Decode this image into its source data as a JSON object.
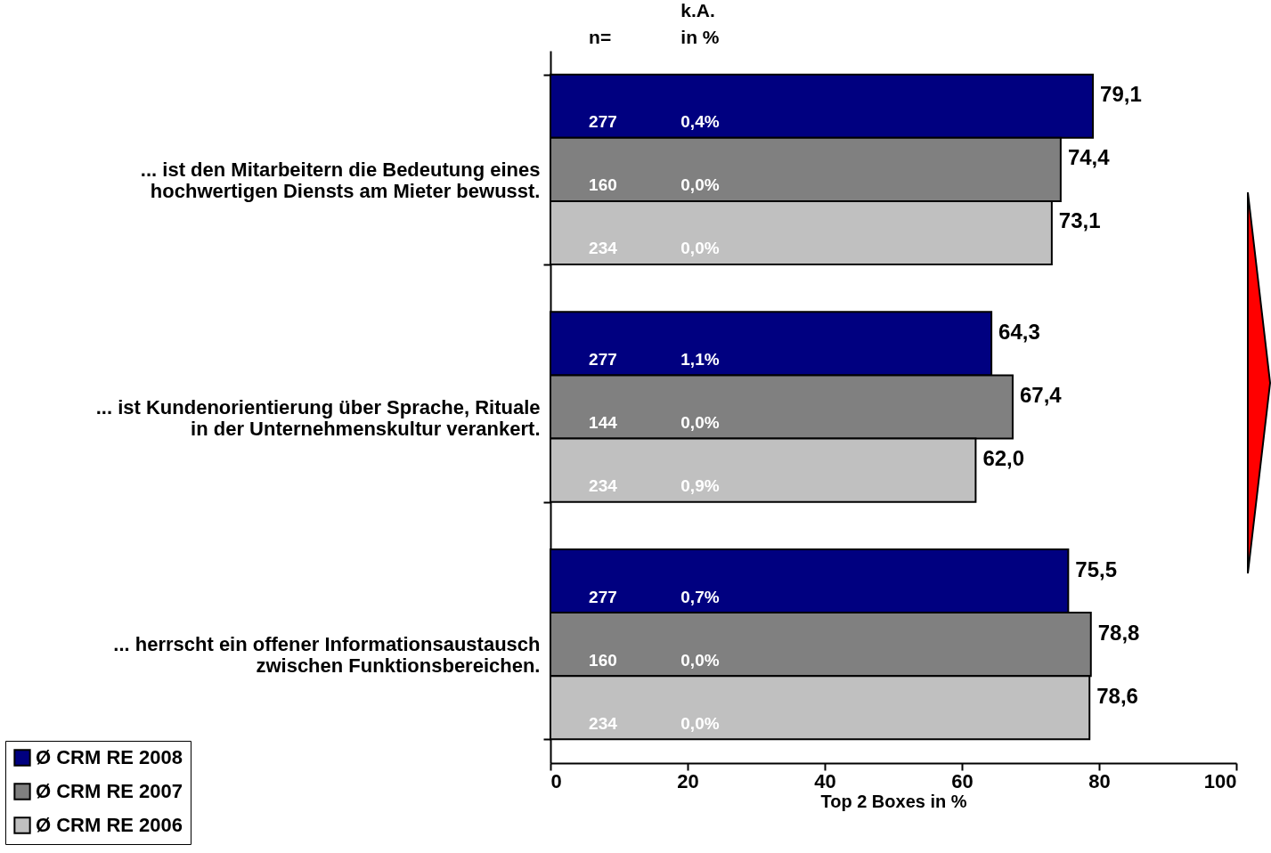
{
  "chart_data": {
    "type": "bar",
    "orientation": "horizontal",
    "xlabel": "Top 2 Boxes in %",
    "xlim": [
      0,
      100
    ],
    "xticks": [
      0,
      20,
      40,
      60,
      80,
      100
    ],
    "grid": false,
    "legend": "bottom left",
    "categories": [
      "... ist den Mitarbeitern die Bedeutung eines hochwertigen Diensts am Mieter bewusst.",
      "... ist Kundenorientierung über Sprache, Rituale in der Unternehmenskultur verankert.",
      "... herrscht ein offener Informationsaustausch zwischen Funktionsbereichen."
    ],
    "series": [
      {
        "name": "Ø CRM RE 2008",
        "color": "#000080",
        "values": [
          79.1,
          64.3,
          75.5
        ],
        "value_labels": [
          "79,1",
          "64,3",
          "75,5"
        ]
      },
      {
        "name": "Ø CRM RE 2007",
        "color": "#808080",
        "values": [
          74.4,
          67.4,
          78.8
        ],
        "value_labels": [
          "74,4",
          "67,4",
          "78,8"
        ]
      },
      {
        "name": "Ø CRM RE 2006",
        "color": "#c0c0c0",
        "values": [
          73.1,
          62.0,
          78.6
        ],
        "value_labels": [
          "73,1",
          "62,0",
          "78,6"
        ]
      }
    ],
    "annotations": [
      "n=",
      "k.A.",
      "in %",
      "277",
      "0,4%",
      "160",
      "0,0%",
      "234",
      "0,0%",
      "277",
      "1,1%",
      "144",
      "0,0%",
      "234",
      "0,9%",
      "277",
      "0,7%",
      "160",
      "0,0%",
      "234",
      "0,0%"
    ]
  }
}
